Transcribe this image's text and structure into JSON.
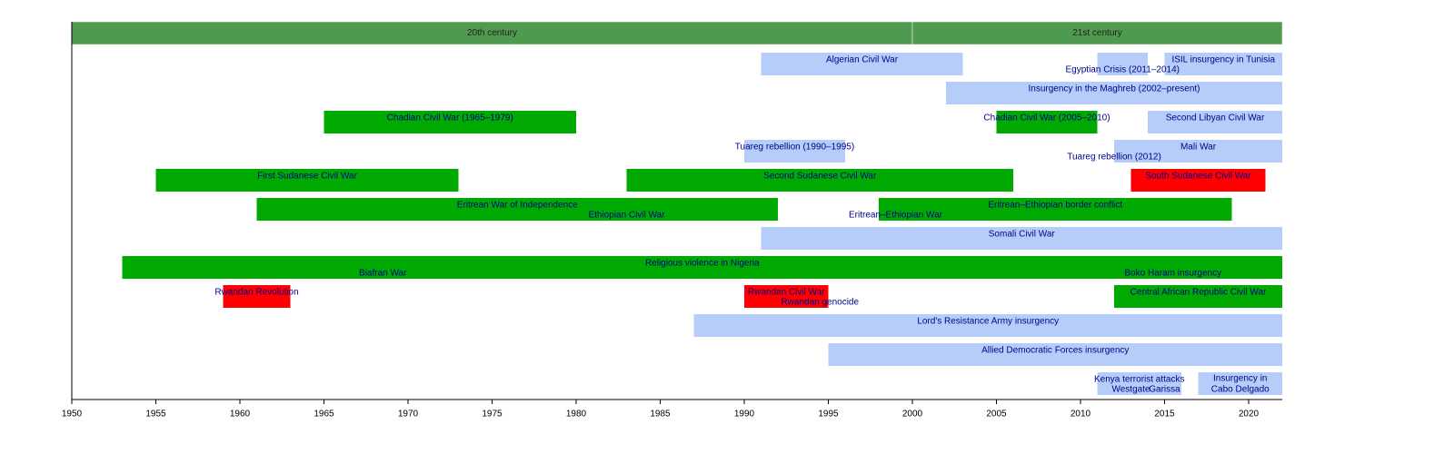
{
  "chart_data": {
    "type": "timeline",
    "xlim": [
      1950,
      2022
    ],
    "xticks": [
      1950,
      1955,
      1960,
      1965,
      1970,
      1975,
      1980,
      1985,
      1990,
      1995,
      2000,
      2005,
      2010,
      2015,
      2020
    ],
    "colors": {
      "major": "#00aa00",
      "minor": "#b7cdf9",
      "genocide": "#ff0000",
      "era": "#4e9a4e"
    },
    "eras": [
      {
        "label": "20th century",
        "start": 1950,
        "end": 2000
      },
      {
        "label": "21st century",
        "start": 2000,
        "end": 2022
      }
    ],
    "lanes": [
      [
        {
          "label": "Algerian Civil War",
          "start": 1991,
          "end": 2003,
          "kind": "minor"
        },
        {
          "label": "Egyptian Crisis (2011–2014)",
          "start": 2011,
          "end": 2014,
          "kind": "minor",
          "lower": true
        },
        {
          "label": "ISIL insurgency in Tunisia",
          "start": 2015,
          "end": 2022,
          "kind": "minor"
        }
      ],
      [
        {
          "label": "Insurgency in the Maghreb (2002–present)",
          "start": 2002,
          "end": 2022,
          "kind": "minor"
        }
      ],
      [
        {
          "label": "Chadian Civil War (1965–1979)",
          "start": 1965,
          "end": 1980,
          "kind": "major"
        },
        {
          "label": "Chadian Civil War (2005–2010)",
          "start": 2005,
          "end": 2011,
          "kind": "major"
        },
        {
          "label": "Second Libyan Civil War",
          "start": 2014,
          "end": 2022,
          "kind": "minor"
        }
      ],
      [
        {
          "label": "Tuareg rebellion (1990–1995)",
          "start": 1990,
          "end": 1996,
          "kind": "minor"
        },
        {
          "label": "Mali War",
          "start": 2012,
          "end": 2022,
          "kind": "minor"
        },
        {
          "label": "Tuareg rebellion (2012)",
          "start": 2012,
          "end": 2012,
          "kind": "minor",
          "lower": true
        }
      ],
      [
        {
          "label": "First Sudanese Civil War",
          "start": 1955,
          "end": 1973,
          "kind": "major"
        },
        {
          "label": "Second Sudanese Civil War",
          "start": 1983,
          "end": 2006,
          "kind": "major"
        },
        {
          "label": "South Sudanese Civil War",
          "start": 2013,
          "end": 2021,
          "kind": "genocide"
        }
      ],
      [
        {
          "label": "Eritrean War of Independence",
          "start": 1961,
          "end": 1992,
          "kind": "major"
        },
        {
          "label": "Ethiopian Civil War",
          "start": 1974,
          "end": 1992,
          "kind": "major",
          "lower": true
        },
        {
          "label": "Eritrean–Ethiopian border conflict",
          "start": 1998,
          "end": 2019,
          "kind": "major"
        },
        {
          "label": "Eritrean–Ethiopian War",
          "start": 1998,
          "end": 2000,
          "kind": "major",
          "lower": true
        }
      ],
      [
        {
          "label": "Somali Civil War",
          "start": 1991,
          "end": 2022,
          "kind": "minor"
        }
      ],
      [
        {
          "label": "Religious violence in Nigeria",
          "start": 1953,
          "end": 2022,
          "kind": "major"
        },
        {
          "label": "Biafran War",
          "start": 1967,
          "end": 1970,
          "kind": "major",
          "lower": true
        },
        {
          "label": "Boko Haram insurgency",
          "start": 2009,
          "end": 2022,
          "kind": "major",
          "lower": true
        }
      ],
      [
        {
          "label": "Rwandan Revolution",
          "start": 1959,
          "end": 1963,
          "kind": "genocide"
        },
        {
          "label": "Rwandan Civil War",
          "start": 1990,
          "end": 1995,
          "kind": "genocide"
        },
        {
          "label": "Rwandan genocide",
          "start": 1994,
          "end": 1995,
          "kind": "genocide",
          "lower": true
        },
        {
          "label": "Central African Republic Civil War",
          "start": 2012,
          "end": 2022,
          "kind": "major"
        }
      ],
      [
        {
          "label": "Lord's Resistance Army insurgency",
          "start": 1987,
          "end": 2022,
          "kind": "minor"
        }
      ],
      [
        {
          "label": "Allied Democratic Forces insurgency",
          "start": 1995,
          "end": 2022,
          "kind": "minor"
        }
      ],
      [
        {
          "label": "Kenya terrorist attacks",
          "start": 2011,
          "end": 2016,
          "kind": "minor"
        },
        {
          "label": "Westgate",
          "start": 2013,
          "end": 2013,
          "kind": "minor",
          "lower": true
        },
        {
          "label": "Garissa",
          "start": 2015,
          "end": 2015,
          "kind": "minor",
          "lower": true
        },
        {
          "label": [
            "Insurgency in",
            "Cabo Delgado"
          ],
          "start": 2017,
          "end": 2022,
          "kind": "minor"
        }
      ]
    ]
  }
}
